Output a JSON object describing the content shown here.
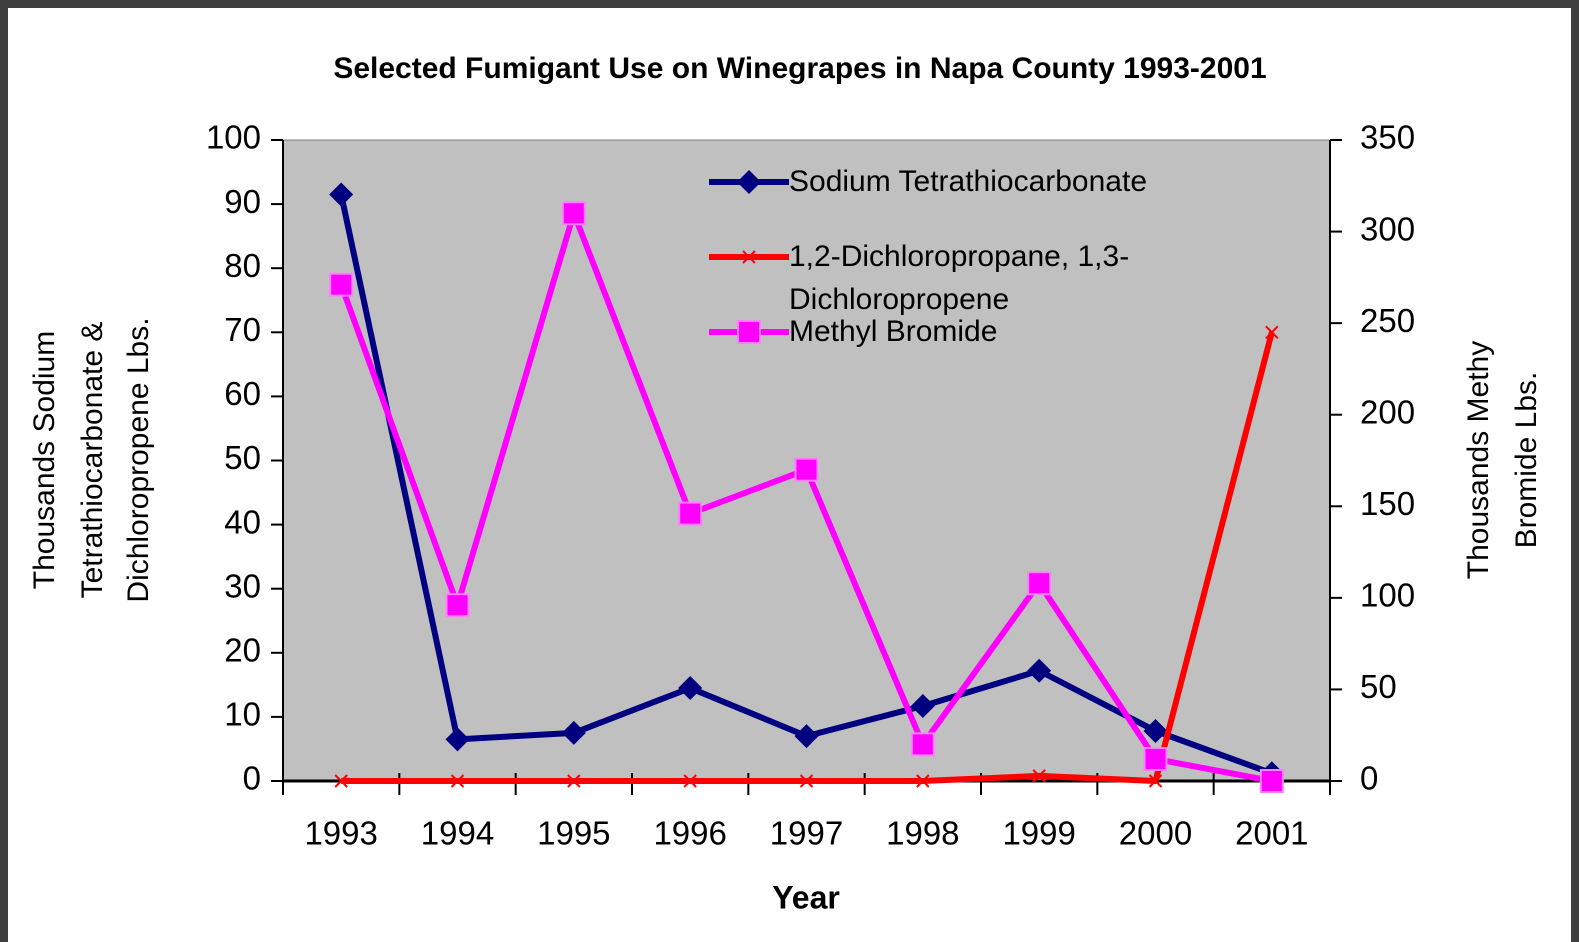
{
  "chart_data": {
    "type": "line",
    "title": "Selected Fumigant Use on Winegrapes in Napa County 1993-2001",
    "xlabel": "Year",
    "ylabel": [
      "Thousands Sodium",
      "Tetrathiocarbonate &",
      "Dichloropropene Lbs."
    ],
    "y2label": [
      "Thousands Methy",
      "Bromide Lbs."
    ],
    "categories": [
      "1993",
      "1994",
      "1995",
      "1996",
      "1997",
      "1998",
      "1999",
      "2000",
      "2001"
    ],
    "series": [
      {
        "name": "Sodium Tetrathiocarbonate",
        "color": "#000080",
        "marker": "diamond",
        "values": [
          91.5,
          6.5,
          7.5,
          14.5,
          7,
          11.7,
          17.2,
          7.8,
          1.2
        ]
      },
      {
        "name": "1,2-Dichloropropane, 1,3-Dichloropropene",
        "color": "#ff0000",
        "marker": "x",
        "values": [
          0,
          0,
          0,
          0,
          0,
          0,
          0.8,
          0,
          70
        ]
      },
      {
        "name": "Methyl Bromide",
        "color": "#ff00ff",
        "marker": "square",
        "axis": "y2",
        "values": [
          271,
          96,
          310,
          146,
          170,
          20,
          108,
          12,
          0
        ]
      }
    ],
    "ylim": [
      0,
      100
    ],
    "yticks": [
      0,
      10,
      20,
      30,
      40,
      50,
      60,
      70,
      80,
      90,
      100
    ],
    "y2lim": [
      0,
      350
    ],
    "y2ticks": [
      0,
      50,
      100,
      150,
      200,
      250,
      300,
      350
    ],
    "plot_background": "#c0c0c0"
  }
}
